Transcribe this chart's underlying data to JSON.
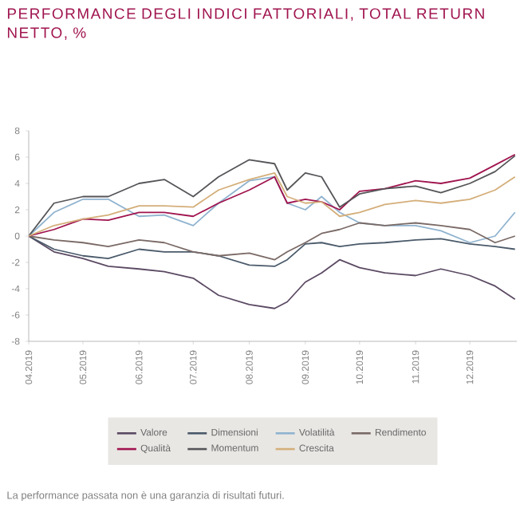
{
  "chart_data": {
    "type": "line",
    "title": "PERFORMANCE DEGLI INDICI FATTORIALI, TOTAL RETURN NETTO, %",
    "annotations": [
      "La performance passata non è una garanzia di risultati futuri."
    ],
    "x": [
      "2019-04-01",
      "2019-04-15",
      "2019-05-01",
      "2019-05-15",
      "2019-06-01",
      "2019-06-15",
      "2019-07-01",
      "2019-07-15",
      "2019-08-01",
      "2019-08-15",
      "2019-08-22",
      "2019-09-01",
      "2019-09-10",
      "2019-09-20",
      "2019-10-01",
      "2019-10-15",
      "2019-11-01",
      "2019-11-15",
      "2019-12-01",
      "2019-12-15",
      "2019-12-26"
    ],
    "series": [
      {
        "name": "Valore",
        "color": "#5b4a63",
        "values": [
          0,
          -1.2,
          -1.7,
          -2.3,
          -2.5,
          -2.7,
          -3.2,
          -4.5,
          -5.2,
          -5.5,
          -5.0,
          -3.5,
          -2.8,
          -1.8,
          -2.4,
          -2.8,
          -3.0,
          -2.5,
          -3.0,
          -3.8,
          -4.8
        ]
      },
      {
        "name": "Dimensioni",
        "color": "#4a5a6a",
        "values": [
          0,
          -1.0,
          -1.5,
          -1.7,
          -1.0,
          -1.2,
          -1.2,
          -1.5,
          -2.2,
          -2.3,
          -1.8,
          -0.6,
          -0.5,
          -0.8,
          -0.6,
          -0.5,
          -0.3,
          -0.2,
          -0.6,
          -0.8,
          -1.0
        ]
      },
      {
        "name": "Volatilità",
        "color": "#8fb3cf",
        "values": [
          0,
          1.8,
          2.8,
          2.8,
          1.5,
          1.6,
          0.8,
          2.5,
          4.2,
          4.5,
          2.5,
          2.0,
          3.0,
          1.8,
          1.0,
          0.8,
          0.8,
          0.4,
          -0.5,
          0.0,
          1.8
        ]
      },
      {
        "name": "Rendimento",
        "color": "#7a6a66",
        "values": [
          0,
          -0.3,
          -0.5,
          -0.8,
          -0.3,
          -0.5,
          -1.2,
          -1.5,
          -1.3,
          -1.8,
          -1.2,
          -0.5,
          0.2,
          0.5,
          1.0,
          0.8,
          1.0,
          0.8,
          0.5,
          -0.5,
          0.0
        ]
      },
      {
        "name": "Qualità",
        "color": "#a0144f",
        "values": [
          0,
          0.5,
          1.3,
          1.2,
          1.8,
          1.8,
          1.5,
          2.5,
          3.5,
          4.5,
          2.5,
          2.8,
          2.6,
          2.0,
          3.4,
          3.6,
          4.2,
          4.0,
          4.4,
          5.4,
          6.2
        ]
      },
      {
        "name": "Momentum",
        "color": "#555559",
        "values": [
          0,
          2.5,
          3.0,
          3.0,
          4.0,
          4.3,
          3.0,
          4.5,
          5.8,
          5.5,
          3.5,
          4.8,
          4.5,
          2.2,
          3.2,
          3.6,
          3.8,
          3.3,
          4.0,
          4.9,
          6.1
        ]
      },
      {
        "name": "Crescita",
        "color": "#d4ae7a",
        "values": [
          0,
          0.8,
          1.3,
          1.6,
          2.3,
          2.3,
          2.2,
          3.5,
          4.3,
          4.8,
          3.0,
          2.5,
          2.6,
          1.5,
          1.8,
          2.4,
          2.7,
          2.5,
          2.8,
          3.5,
          4.5
        ]
      }
    ],
    "xlim": [
      "2019-04-01",
      "2019-12-27"
    ],
    "xticks": [
      {
        "value": "2019-04-01",
        "label": "04.2019"
      },
      {
        "value": "2019-05-01",
        "label": "05.2019"
      },
      {
        "value": "2019-06-01",
        "label": "06.2019"
      },
      {
        "value": "2019-07-01",
        "label": "07.2019"
      },
      {
        "value": "2019-08-01",
        "label": "08.2019"
      },
      {
        "value": "2019-09-01",
        "label": "09.2019"
      },
      {
        "value": "2019-10-01",
        "label": "10.2019"
      },
      {
        "value": "2019-11-01",
        "label": "11.2019"
      },
      {
        "value": "2019-12-01",
        "label": "12.2019"
      }
    ],
    "ylim": [
      -8,
      8
    ],
    "yticks": [
      -8,
      -6,
      -4,
      -2,
      0,
      2,
      4,
      6,
      8
    ],
    "grid": false,
    "legend": "bottom",
    "marker": "none",
    "line_style": "solid"
  }
}
